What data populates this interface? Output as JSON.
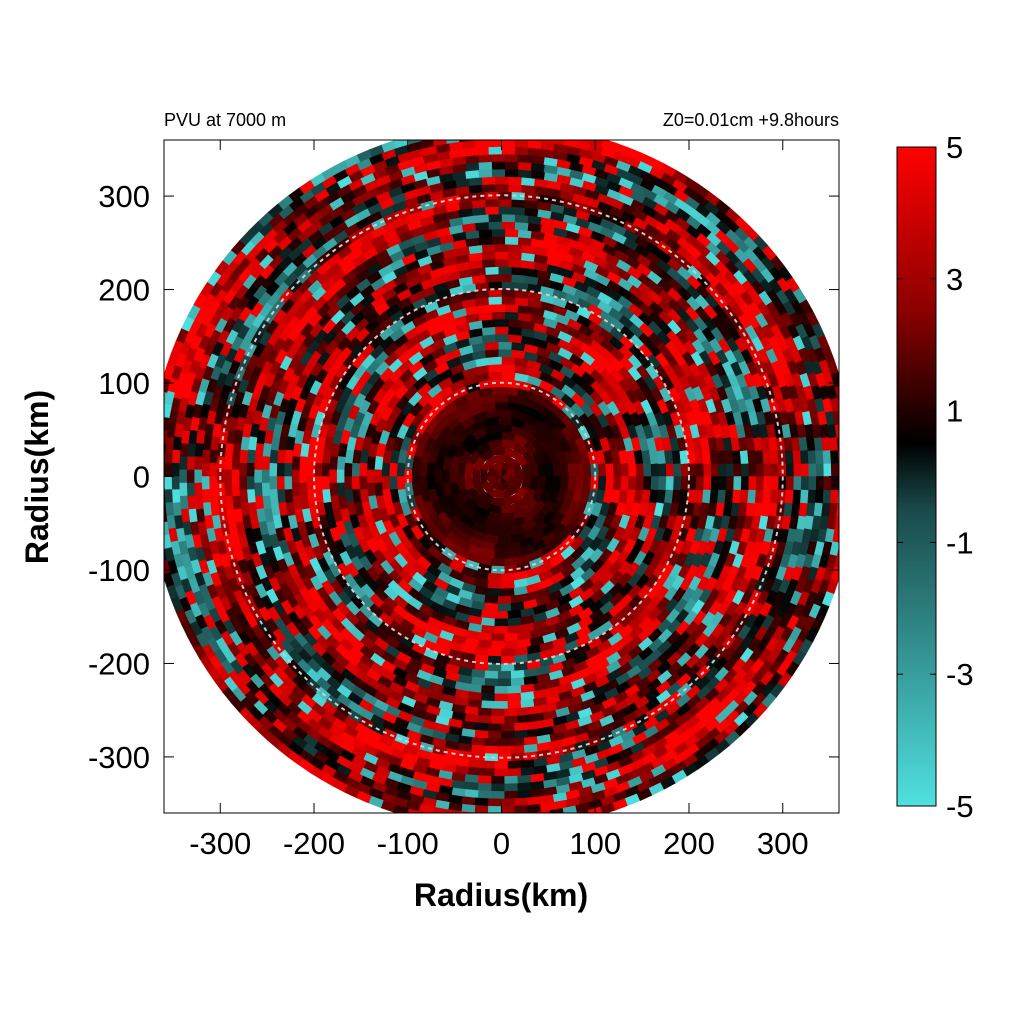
{
  "chart_data": {
    "type": "heatmap",
    "title_left": "PVU at  7000 m",
    "title_right": "Z0=0.01cm  +9.8hours",
    "xlabel": "Radius(km)",
    "ylabel": "Radius(km)",
    "xlim": [
      -360,
      360
    ],
    "ylim": [
      -360,
      360
    ],
    "x_ticks": [
      -300,
      -200,
      -100,
      0,
      100,
      200,
      300
    ],
    "y_ticks": [
      300,
      200,
      100,
      0,
      -100,
      -200,
      -300
    ],
    "domain_radius": 375,
    "reference_circles_km": [
      100,
      200,
      300
    ],
    "colorbar": {
      "min": -5,
      "max": 5,
      "ticks": [
        5,
        3,
        1,
        -1,
        -3,
        -5
      ],
      "colors": {
        "low": "#50e0e0",
        "mid": "#000000",
        "high": "#ff0000"
      }
    }
  }
}
